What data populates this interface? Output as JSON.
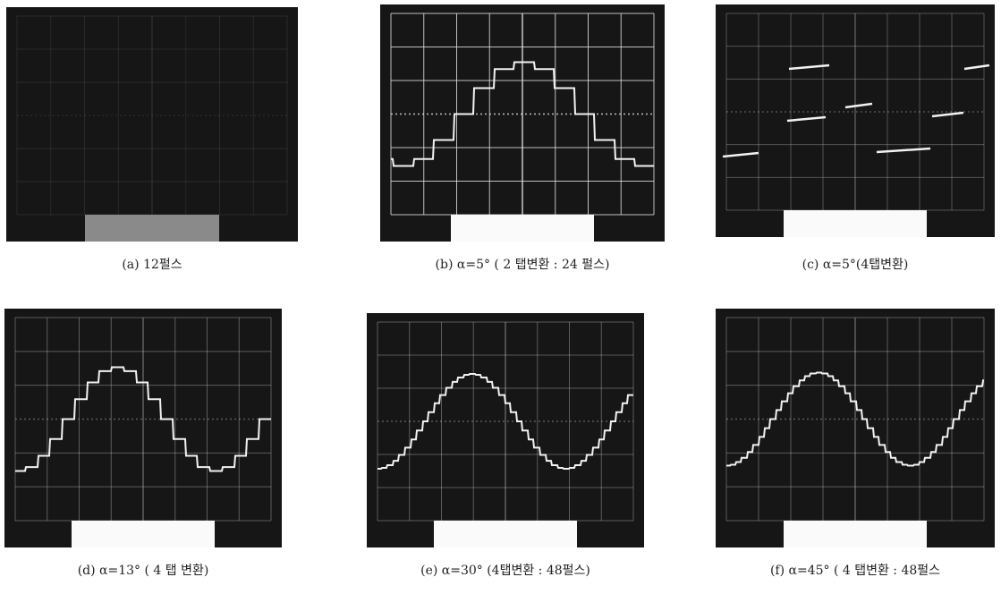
{
  "figures": [
    {
      "caption": "(a) 12펄스"
    },
    {
      "caption": "(b) α=5° ( 2 탭변환 : 24 펄스)"
    },
    {
      "caption": "(c) α=5°(4탭변환)"
    },
    {
      "caption": "(d) α=13° ( 4 탭 변환)"
    },
    {
      "caption": "(e) α=30° (4탭변환 : 48펄스)"
    },
    {
      "caption": "(f) α=45° ( 4 탭변환 : 48펄스"
    }
  ]
}
